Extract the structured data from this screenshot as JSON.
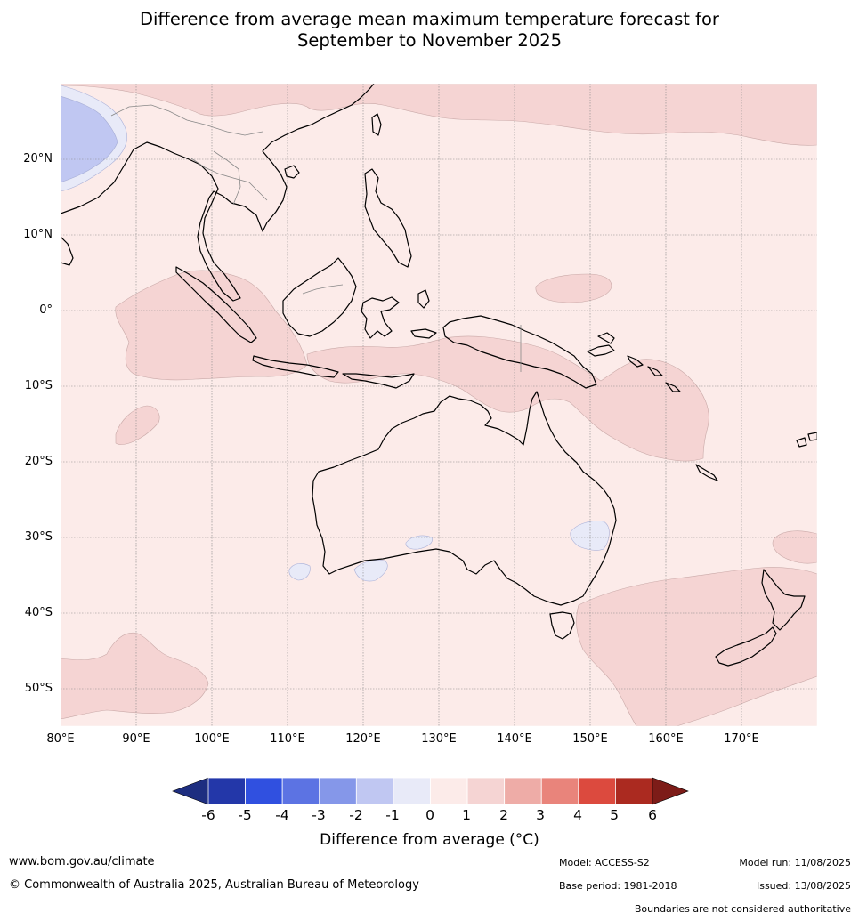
{
  "title": {
    "line1": "Difference from average mean maximum temperature forecast for",
    "line2": "September to November 2025"
  },
  "map": {
    "lon_range": [
      80,
      180
    ],
    "lat_range": [
      -55,
      30
    ],
    "lat_labels": [
      "20°N",
      "10°N",
      "0°",
      "10°S",
      "20°S",
      "30°S",
      "40°S",
      "50°S"
    ],
    "lon_labels": [
      "80°E",
      "90°E",
      "100°E",
      "110°E",
      "120°E",
      "130°E",
      "140°E",
      "150°E",
      "160°E",
      "170°E"
    ],
    "fill_category": "0 to 1",
    "regions": [
      {
        "area": "Equatorial Indian Ocean west of Sumatra",
        "category": "1 to 2"
      },
      {
        "area": "Timor Sea, Arafura Sea and northern Australia",
        "category": "1 to 2"
      },
      {
        "area": "Coral Sea to New Caledonia",
        "category": "1 to 2"
      },
      {
        "area": "North Pacific and South China Sea",
        "category": "1 to 2"
      },
      {
        "area": "Tasman Sea and New Zealand",
        "category": "1 to 2"
      },
      {
        "area": "Southern Indian Ocean south-west",
        "category": "1 to 2"
      },
      {
        "area": "Bay of Bengal",
        "category": "-2 to -1"
      },
      {
        "area": "Small patches south of Western Australia and inland NSW",
        "category": "-1 to 0"
      }
    ]
  },
  "colorbar": {
    "ticks": [
      "-6",
      "-5",
      "-4",
      "-3",
      "-2",
      "-1",
      "0",
      "1",
      "2",
      "3",
      "4",
      "5",
      "6"
    ],
    "colors": [
      "#2337a9",
      "#3050e0",
      "#5c73e3",
      "#8597e9",
      "#c0c7f2",
      "#e8eaf8",
      "#fcebe9",
      "#f5d4d3",
      "#eeaca7",
      "#e9847b",
      "#dc4a3e",
      "#ab2a20"
    ],
    "under_color": "#1e2e80",
    "over_color": "#7d1c18",
    "label": "Difference from average (°C)"
  },
  "footer": {
    "website": "www.bom.gov.au/climate",
    "copyright": "© Commonwealth of Australia 2025, Australian Bureau of Meteorology",
    "model": "Model: ACCESS-S2",
    "base_period": "Base period: 1981-2018",
    "model_run": "Model run: 11/08/2025",
    "issued": "Issued: 13/08/2025",
    "disclaimer": "Boundaries are not considered authoritative"
  }
}
